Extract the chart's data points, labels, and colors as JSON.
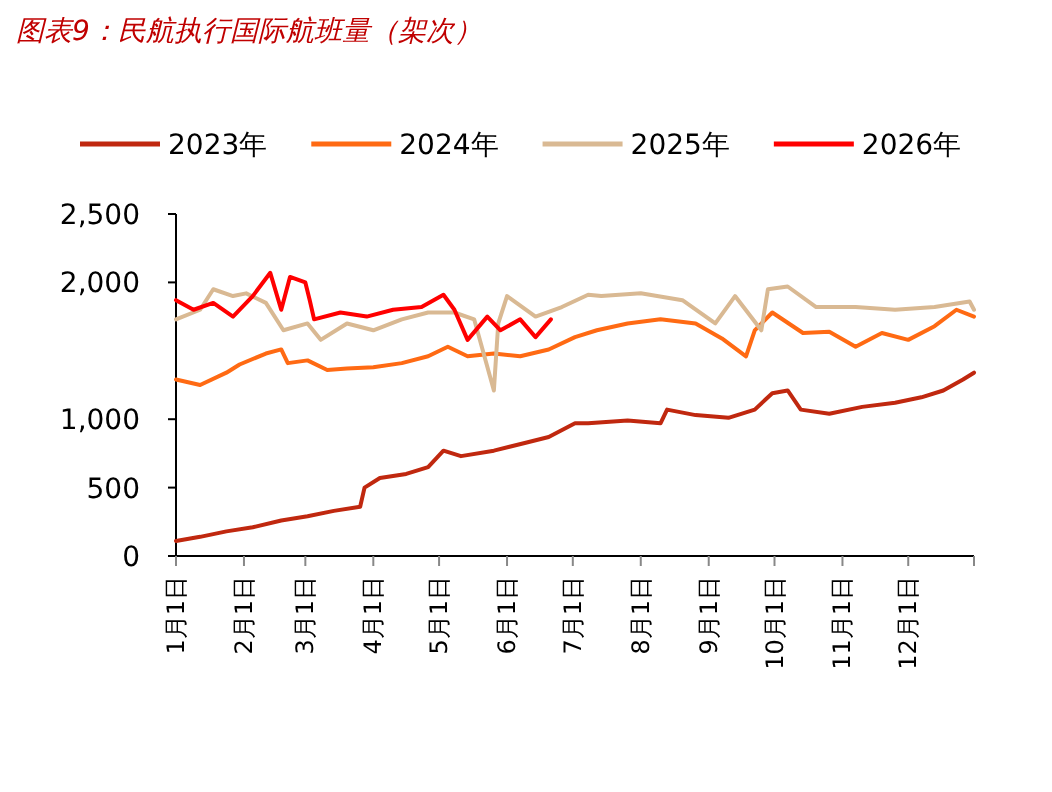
{
  "chart_data": {
    "type": "line",
    "title": "图表9：民航执行国际航班量（架次）",
    "xlim": [
      "--01-01",
      "--12-31"
    ],
    "xticks": [
      {
        "value": "--01-01",
        "label": "1月1日"
      },
      {
        "value": "--02-01",
        "label": "2月1日"
      },
      {
        "value": "--03-01",
        "label": "3月1日"
      },
      {
        "value": "--04-01",
        "label": "4月1日"
      },
      {
        "value": "--05-01",
        "label": "5月1日"
      },
      {
        "value": "--06-01",
        "label": "6月1日"
      },
      {
        "value": "--07-01",
        "label": "7月1日"
      },
      {
        "value": "--08-01",
        "label": "8月1日"
      },
      {
        "value": "--09-01",
        "label": "9月1日"
      },
      {
        "value": "--10-01",
        "label": "10月1日"
      },
      {
        "value": "--11-01",
        "label": "11月1日"
      },
      {
        "value": "--12-01",
        "label": "12月1日"
      },
      {
        "value": "--12-31",
        "label": null
      }
    ],
    "ylim": [
      0,
      2500
    ],
    "yticks": [
      0,
      500,
      {
        "value": 1000,
        "label": "1,000"
      },
      {
        "value": 2000,
        "label": "2,000"
      },
      {
        "value": 2500,
        "label": "2,500"
      }
    ],
    "grid": false,
    "legend": "top",
    "marker": "none",
    "line_style": "solid",
    "series": [
      {
        "name": "2023年",
        "color": "#c0280f",
        "x": [
          "--01-01",
          "--01-12",
          "--01-24",
          "--02-05",
          "--02-18",
          "--03-02",
          "--03-14",
          "--03-26",
          "--03-28",
          "--04-04",
          "--04-16",
          "--04-26",
          "--05-03",
          "--05-11",
          "--05-26",
          "--06-10",
          "--06-20",
          "--07-02",
          "--07-08",
          "--07-26",
          "--08-10",
          "--08-13",
          "--08-26",
          "--09-10",
          "--09-22",
          "--09-30",
          "--10-07",
          "--10-13",
          "--10-26",
          "--11-10",
          "--11-25",
          "--12-07",
          "--12-17",
          "--12-26",
          "--12-31"
        ],
        "values": [
          110,
          140,
          180,
          210,
          260,
          290,
          330,
          360,
          500,
          570,
          600,
          650,
          770,
          730,
          770,
          830,
          870,
          970,
          970,
          990,
          970,
          1070,
          1030,
          1010,
          1070,
          1190,
          1210,
          1070,
          1040,
          1090,
          1120,
          1160,
          1210,
          1290,
          1340
        ]
      },
      {
        "name": "2024年",
        "color": "#ff6a13",
        "x": [
          "--01-01",
          "--01-12",
          "--01-24",
          "--01-30",
          "--02-11",
          "--02-18",
          "--02-21",
          "--03-02",
          "--03-11",
          "--03-20",
          "--04-01",
          "--04-14",
          "--04-26",
          "--05-05",
          "--05-14",
          "--05-26",
          "--06-07",
          "--06-20",
          "--07-02",
          "--07-12",
          "--07-26",
          "--08-10",
          "--08-26",
          "--09-07",
          "--09-18",
          "--09-22",
          "--09-30",
          "--10-14",
          "--10-26",
          "--11-07",
          "--11-19",
          "--12-01",
          "--12-13",
          "--12-23",
          "--12-31"
        ],
        "values": [
          1290,
          1250,
          1340,
          1400,
          1480,
          1510,
          1410,
          1430,
          1360,
          1370,
          1380,
          1410,
          1460,
          1530,
          1460,
          1480,
          1460,
          1510,
          1600,
          1650,
          1700,
          1730,
          1700,
          1590,
          1460,
          1650,
          1780,
          1630,
          1640,
          1530,
          1630,
          1580,
          1680,
          1800,
          1750
        ]
      },
      {
        "name": "2025年",
        "color": "#d9b993",
        "x": [
          "--01-01",
          "--01-12",
          "--01-18",
          "--01-27",
          "--02-02",
          "--02-11",
          "--02-19",
          "--03-02",
          "--03-08",
          "--03-20",
          "--04-01",
          "--04-14",
          "--04-26",
          "--05-08",
          "--05-17",
          "--05-26",
          "--05-28",
          "--06-01",
          "--06-14",
          "--06-26",
          "--07-08",
          "--07-14",
          "--08-01",
          "--08-20",
          "--09-04",
          "--09-13",
          "--09-25",
          "--09-28",
          "--10-07",
          "--10-20",
          "--11-07",
          "--11-25",
          "--12-13",
          "--12-29",
          "--12-31"
        ],
        "values": [
          1730,
          1800,
          1950,
          1900,
          1920,
          1850,
          1650,
          1700,
          1580,
          1700,
          1650,
          1730,
          1780,
          1780,
          1730,
          1210,
          1700,
          1900,
          1750,
          1820,
          1910,
          1900,
          1920,
          1870,
          1700,
          1900,
          1650,
          1950,
          1970,
          1820,
          1820,
          1800,
          1820,
          1860,
          1800
        ]
      },
      {
        "name": "2026年",
        "color": "#ff0000",
        "x": [
          "--01-01",
          "--01-09",
          "--01-18",
          "--01-27",
          "--02-05",
          "--02-13",
          "--02-18",
          "--02-22",
          "--03-01",
          "--03-03",
          "--03-05",
          "--03-17",
          "--03-29",
          "--04-10",
          "--04-23",
          "--05-03",
          "--05-08",
          "--05-14",
          "--05-23",
          "--05-29",
          "--06-07",
          "--06-14",
          "--06-21"
        ],
        "values": [
          1870,
          1800,
          1850,
          1750,
          1900,
          2070,
          1800,
          2040,
          2000,
          1870,
          1730,
          1780,
          1750,
          1800,
          1820,
          1910,
          1800,
          1580,
          1750,
          1650,
          1730,
          1600,
          1730
        ]
      }
    ]
  }
}
